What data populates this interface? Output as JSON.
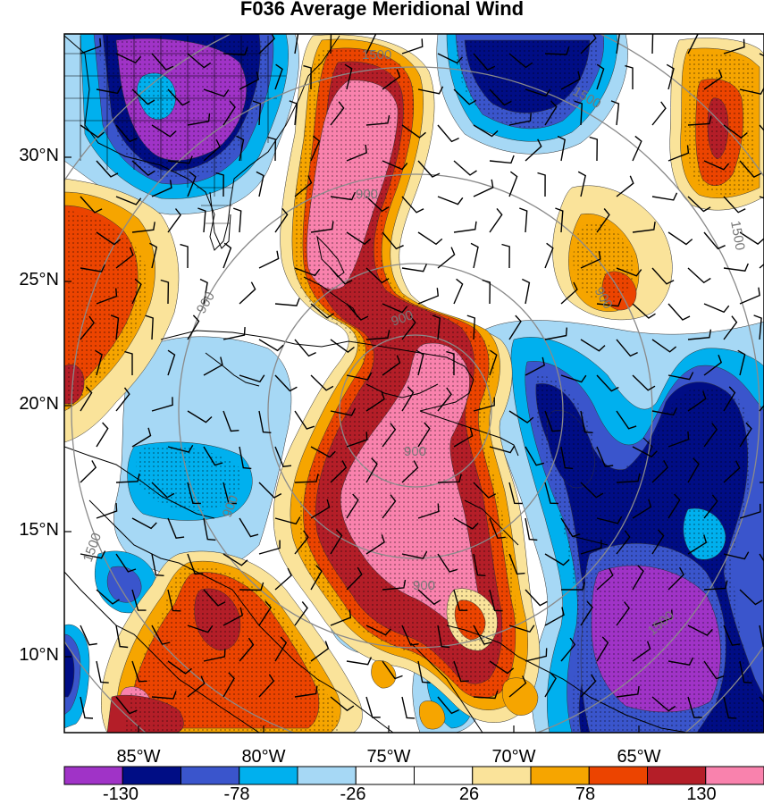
{
  "title": "F036 Average Meridional Wind",
  "lat_labels": [
    "30°N",
    "25°N",
    "20°N",
    "15°N",
    "10°N"
  ],
  "lon_labels": [
    "85°W",
    "80°W",
    "75°W",
    "70°W",
    "65°W"
  ],
  "contour_labels": [
    "1500",
    "900",
    "900",
    "900",
    "900",
    "900",
    "900",
    "900",
    "1500",
    "1500",
    "1500",
    "1500"
  ],
  "colorbar": {
    "colors": [
      "#a033c7",
      "#000d85",
      "#3a55cc",
      "#00b0ee",
      "#a6d8f5",
      "#ffffff",
      "#ffffff",
      "#fae39a",
      "#f6a500",
      "#ec4400",
      "#b41e28",
      "#f982ad"
    ],
    "labels": [
      "-130",
      "-78",
      "-26",
      "26",
      "78",
      "130"
    ]
  },
  "palette": {
    "purple": "#a033c7",
    "navy": "#000d85",
    "blue": "#3a55cc",
    "cyan": "#00b0ee",
    "lightblue": "#a6d8f5",
    "yellow": "#fae39a",
    "orange": "#f6a500",
    "redorange": "#ec4400",
    "darkred": "#b41e28",
    "pink": "#f982ad"
  }
}
